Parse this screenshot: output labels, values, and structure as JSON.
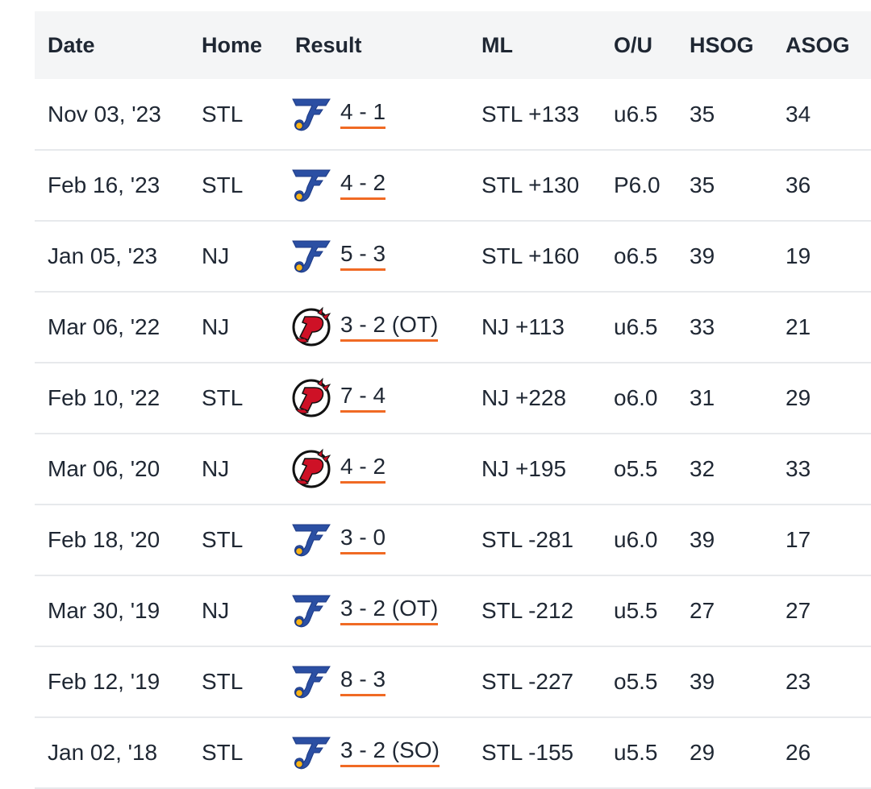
{
  "columns": [
    "Date",
    "Home",
    "Result",
    "ML",
    "O/U",
    "HSOG",
    "ASOG"
  ],
  "colors": {
    "accent_underline": "#f06a24",
    "header_bg": "#f4f5f6",
    "blues": "#2b4fa3",
    "devils": "#ce1126"
  },
  "rows": [
    {
      "date": "Nov 03, '23",
      "home": "STL",
      "winner_logo": "blues-logo-icon",
      "result": "4 - 1",
      "ml": "STL +133",
      "ou": "u6.5",
      "hsog": "35",
      "asog": "34"
    },
    {
      "date": "Feb 16, '23",
      "home": "STL",
      "winner_logo": "blues-logo-icon",
      "result": "4 - 2",
      "ml": "STL +130",
      "ou": "P6.0",
      "hsog": "35",
      "asog": "36"
    },
    {
      "date": "Jan 05, '23",
      "home": "NJ",
      "winner_logo": "blues-logo-icon",
      "result": "5 - 3",
      "ml": "STL +160",
      "ou": "o6.5",
      "hsog": "39",
      "asog": "19"
    },
    {
      "date": "Mar 06, '22",
      "home": "NJ",
      "winner_logo": "devils-logo-icon",
      "result": "3 - 2 (OT)",
      "ml": "NJ +113",
      "ou": "u6.5",
      "hsog": "33",
      "asog": "21"
    },
    {
      "date": "Feb 10, '22",
      "home": "STL",
      "winner_logo": "devils-logo-icon",
      "result": "7 - 4",
      "ml": "NJ +228",
      "ou": "o6.0",
      "hsog": "31",
      "asog": "29"
    },
    {
      "date": "Mar 06, '20",
      "home": "NJ",
      "winner_logo": "devils-logo-icon",
      "result": "4 - 2",
      "ml": "NJ +195",
      "ou": "o5.5",
      "hsog": "32",
      "asog": "33"
    },
    {
      "date": "Feb 18, '20",
      "home": "STL",
      "winner_logo": "blues-logo-icon",
      "result": "3 - 0",
      "ml": "STL -281",
      "ou": "u6.0",
      "hsog": "39",
      "asog": "17"
    },
    {
      "date": "Mar 30, '19",
      "home": "NJ",
      "winner_logo": "blues-logo-icon",
      "result": "3 - 2 (OT)",
      "ml": "STL -212",
      "ou": "u5.5",
      "hsog": "27",
      "asog": "27"
    },
    {
      "date": "Feb 12, '19",
      "home": "STL",
      "winner_logo": "blues-logo-icon",
      "result": "8 - 3",
      "ml": "STL -227",
      "ou": "o5.5",
      "hsog": "39",
      "asog": "23"
    },
    {
      "date": "Jan 02, '18",
      "home": "STL",
      "winner_logo": "blues-logo-icon",
      "result": "3 - 2 (SO)",
      "ml": "STL -155",
      "ou": "u5.5",
      "hsog": "29",
      "asog": "26"
    }
  ]
}
